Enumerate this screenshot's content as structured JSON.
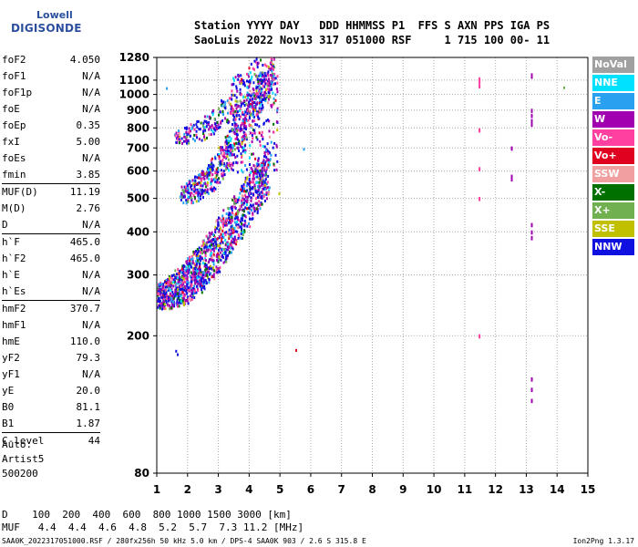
{
  "logo": {
    "line1": "Lowell",
    "line2": "DIGISONDE"
  },
  "header": {
    "line1": "Station YYYY DAY   DDD HHMMSS P1  FFS S AXN PPS IGA PS",
    "line2": "SaoLuis 2022 Nov13 317 051000 RSF     1 715 100 00- 11"
  },
  "params": [
    {
      "group": [
        {
          "label": "foF2",
          "value": "4.050"
        },
        {
          "label": "foF1",
          "value": "N/A"
        },
        {
          "label": "foF1p",
          "value": "N/A"
        },
        {
          "label": "foE",
          "value": "N/A"
        },
        {
          "label": "foEp",
          "value": "0.35"
        },
        {
          "label": "fxI",
          "value": "5.00"
        },
        {
          "label": "foEs",
          "value": "N/A"
        },
        {
          "label": "fmin",
          "value": "3.85"
        }
      ]
    },
    {
      "group": [
        {
          "label": "MUF(D)",
          "value": "11.19"
        },
        {
          "label": "M(D)",
          "value": "2.76"
        },
        {
          "label": "D",
          "value": "N/A"
        }
      ]
    },
    {
      "group": [
        {
          "label": "h`F",
          "value": "465.0"
        },
        {
          "label": "h`F2",
          "value": "465.0"
        },
        {
          "label": "h`E",
          "value": "N/A"
        },
        {
          "label": "h`Es",
          "value": "N/A"
        }
      ]
    },
    {
      "group": [
        {
          "label": "hmF2",
          "value": "370.7"
        },
        {
          "label": "hmF1",
          "value": "N/A"
        },
        {
          "label": "hmE",
          "value": "110.0"
        },
        {
          "label": "yF2",
          "value": "79.3"
        },
        {
          "label": "yF1",
          "value": "N/A"
        },
        {
          "label": "yE",
          "value": "20.0"
        },
        {
          "label": "B0",
          "value": "81.1"
        },
        {
          "label": "B1",
          "value": "1.87"
        }
      ]
    },
    {
      "group": [
        {
          "label": "C-level",
          "value": "44"
        }
      ]
    }
  ],
  "auto": {
    "line1": "Auto:",
    "line2": "Artist5",
    "line3": "500200"
  },
  "legend": [
    {
      "label": "NoVal",
      "color": "#a0a0a0"
    },
    {
      "label": "NNE",
      "color": "#00e0ff"
    },
    {
      "label": "E",
      "color": "#2aa0f0"
    },
    {
      "label": "W",
      "color": "#a000b0"
    },
    {
      "label": "Vo-",
      "color": "#ff40a0"
    },
    {
      "label": "Vo+",
      "color": "#e00020"
    },
    {
      "label": "SSW",
      "color": "#f0a0a0"
    },
    {
      "label": "X-",
      "color": "#007000"
    },
    {
      "label": "X+",
      "color": "#70b050"
    },
    {
      "label": "SSE",
      "color": "#c0c000"
    },
    {
      "label": "NNW",
      "color": "#1010e0"
    }
  ],
  "chart_data": {
    "type": "scatter",
    "title": "",
    "xlabel": "",
    "ylabel": "",
    "xlim": [
      1,
      15
    ],
    "ylim": [
      80,
      1280
    ],
    "x_scale": "linear",
    "y_scale": "log",
    "grid": true,
    "x_ticks": [
      "1",
      "2",
      "3",
      "4",
      "5",
      "6",
      "7",
      "8",
      "9",
      "10",
      "11",
      "12",
      "13",
      "14",
      "15"
    ],
    "y_ticks": [
      {
        "value": 80,
        "label": "80"
      },
      {
        "value": 200,
        "label": "200"
      },
      {
        "value": 300,
        "label": "300"
      },
      {
        "value": 400,
        "label": "400"
      },
      {
        "value": 500,
        "label": "500"
      },
      {
        "value": 600,
        "label": "600"
      },
      {
        "value": 700,
        "label": "700"
      },
      {
        "value": 800,
        "label": "800"
      },
      {
        "value": 900,
        "label": "900"
      },
      {
        "value": 1000,
        "label": "1000"
      },
      {
        "value": 1100,
        "label": "1100"
      },
      {
        "value": 1280,
        "label": "1280"
      }
    ],
    "series": [
      {
        "name": "NNW",
        "color": "#1010e0"
      },
      {
        "name": "W",
        "color": "#a000b0"
      },
      {
        "name": "Vo-",
        "color": "#ff40a0"
      },
      {
        "name": "E",
        "color": "#2aa0f0"
      },
      {
        "name": "NNE",
        "color": "#00e0ff"
      },
      {
        "name": "X-",
        "color": "#007000"
      },
      {
        "name": "X+",
        "color": "#70b050"
      },
      {
        "name": "SSE",
        "color": "#c0c000"
      },
      {
        "name": "Vo+",
        "color": "#e00020"
      },
      {
        "name": "SSW",
        "color": "#f0a0a0"
      }
    ],
    "traces": [
      {
        "name": "F-trace",
        "f_start": 1.0,
        "f_end": 4.6,
        "h_start": 250,
        "h_end": 560
      },
      {
        "name": "F-second-hop",
        "f_start": 1.8,
        "f_end": 4.8,
        "h_start": 500,
        "h_end": 1130
      },
      {
        "name": "F-third-hop",
        "f_start": 1.6,
        "f_end": 4.6,
        "h_start": 740,
        "h_end": 1200
      }
    ],
    "interference_columns": [
      {
        "x": 11.45,
        "h": [
          1060,
          1090,
          1110,
          790,
          610,
          500,
          200
        ],
        "color": "#ff40a0"
      },
      {
        "x": 12.5,
        "h": [
          700,
          580,
          570
        ],
        "color": "#a000b0"
      },
      {
        "x": 13.15,
        "h": [
          1130,
          1140,
          900,
          870,
          840,
          820,
          420,
          400,
          385,
          150,
          140,
          130
        ],
        "color": "#a000b0"
      }
    ]
  },
  "footer": {
    "line1": "D    100  200  400  600  800 1000 1500 3000 [km]",
    "line2": "MUF   4.4  4.4  4.6  4.8  5.2  5.7  7.3 11.2 [MHz]"
  },
  "bottom": {
    "text": "SAA0K_2022317051000.RSF / 280fx256h 50 kHz 5.0 km / DPS-4 SAA0K 903 / 2.6 S 315.8 E",
    "version": "Ion2Png 1.3.17"
  }
}
